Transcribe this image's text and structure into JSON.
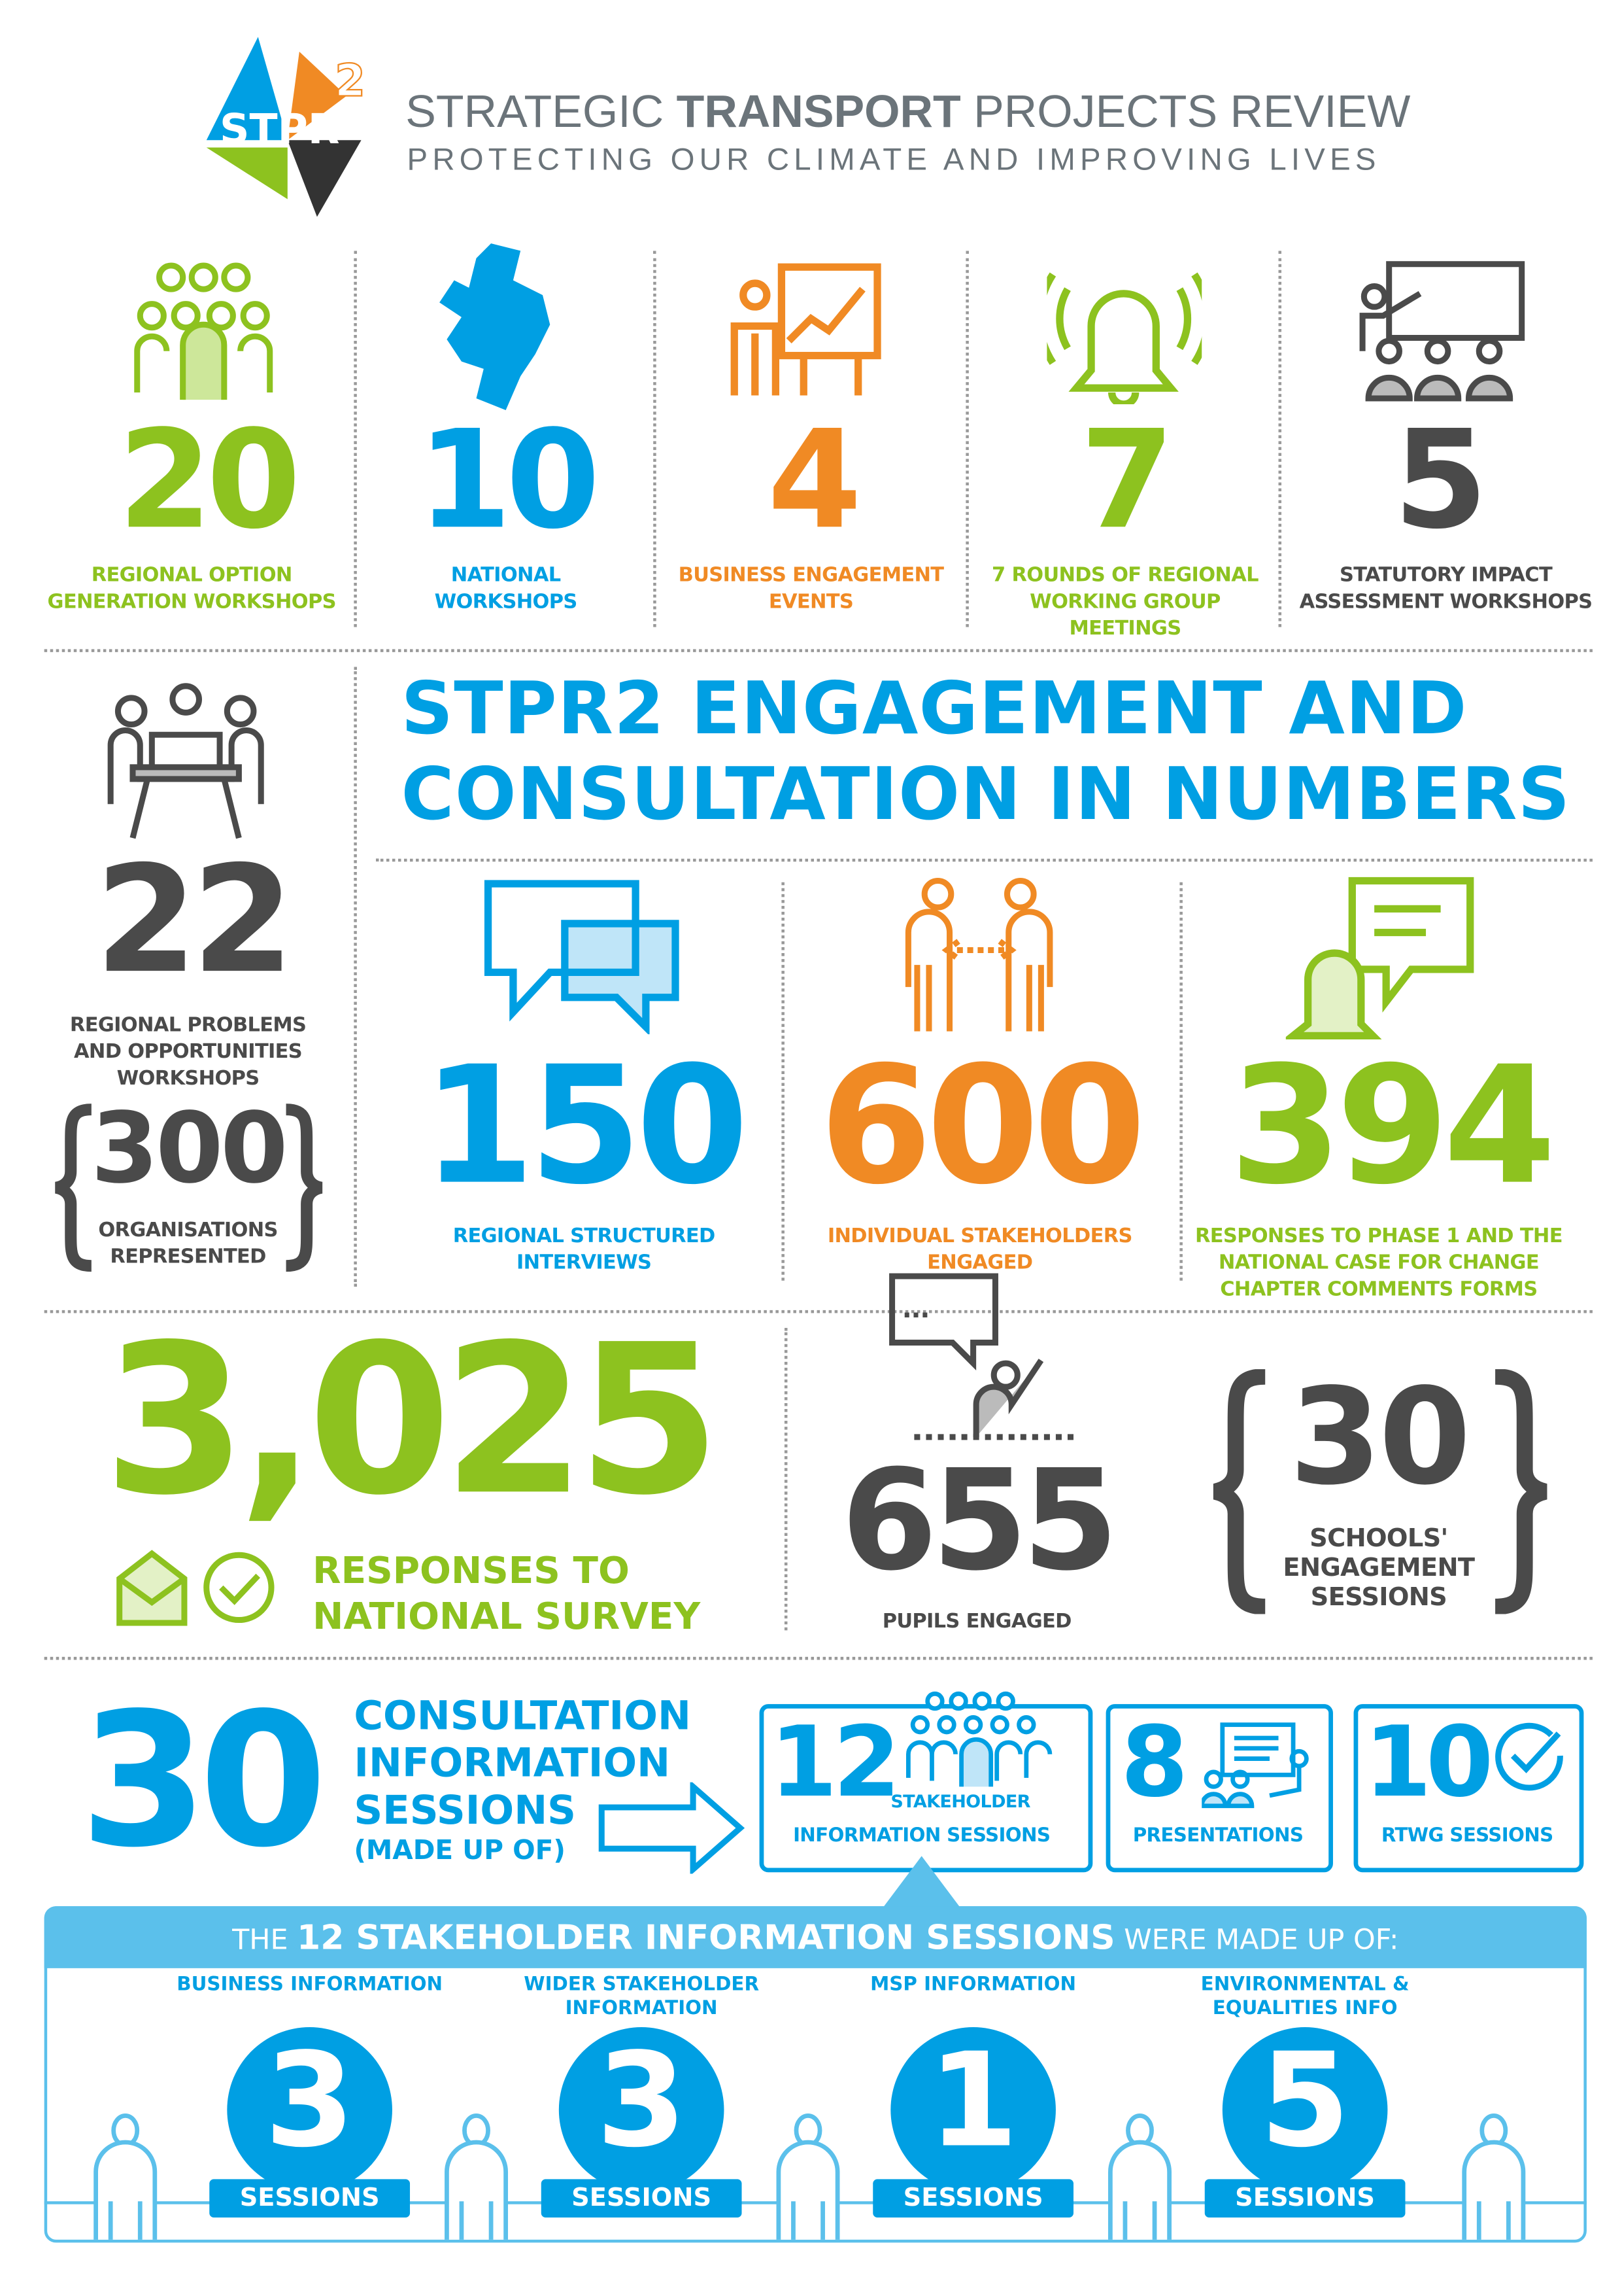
{
  "header": {
    "logo_text": "STPR",
    "logo_superscript": "2",
    "title_light_1": "STRATEGIC ",
    "title_bold": "TRANSPORT",
    "title_light_2": " PROJECTS REVIEW",
    "subtitle": "PROTECTING OUR CLIMATE AND IMPROVING LIVES"
  },
  "colors": {
    "green": "#8dc21f",
    "blue": "#009fe3",
    "orange": "#f08a24",
    "dark": "#4a4a4a",
    "light_blue": "#5bc0eb"
  },
  "row1": [
    {
      "value": "20",
      "label": "REGIONAL OPTION\nGENERATION WORKSHOPS",
      "icon": "group-people-icon"
    },
    {
      "value": "10",
      "label": "NATIONAL\nWORKSHOPS",
      "icon": "scotland-map-icon"
    },
    {
      "value": "4",
      "label": "BUSINESS ENGAGEMENT\nEVENTS",
      "icon": "presentation-chart-icon"
    },
    {
      "value": "7",
      "label": "7 ROUNDS OF REGIONAL\nWORKING GROUP\nMEETINGS",
      "icon": "bell-icon"
    },
    {
      "value": "5",
      "label": "STATUTORY IMPACT\nASSESSMENT WORKSHOPS",
      "icon": "teacher-audience-icon"
    }
  ],
  "headline": {
    "line1": "STPR2 ENGAGEMENT AND",
    "line2": "CONSULTATION IN NUMBERS"
  },
  "left": {
    "value": "22",
    "label": "REGIONAL PROBLEMS\nAND OPPORTUNITIES\nWORKSHOPS",
    "org_value": "300",
    "org_label": "ORGANISATIONS\nREPRESENTED"
  },
  "row2": [
    {
      "value": "150",
      "label": "REGIONAL STRUCTURED\nINTERVIEWS",
      "icon": "speech-bubbles-icon"
    },
    {
      "value": "600",
      "label": "INDIVIDUAL STAKEHOLDERS\nENGAGED",
      "icon": "two-people-exchange-icon"
    },
    {
      "value": "394",
      "label": "RESPONSES TO PHASE 1 AND THE\nNATIONAL CASE FOR CHANGE\nCHAPTER COMMENTS FORMS",
      "icon": "bell-chat-icon"
    }
  ],
  "survey": {
    "value": "3,025",
    "line1": "RESPONSES TO",
    "line2": "NATIONAL SURVEY"
  },
  "pupils": {
    "value": "655",
    "label": "PUPILS ENGAGED",
    "bubble": "..."
  },
  "schools": {
    "value": "30",
    "label": "SCHOOLS'\nENGAGEMENT\nSESSIONS"
  },
  "consultation": {
    "value": "30",
    "line1": "CONSULTATION",
    "line2": "INFORMATION",
    "line3": "SESSIONS",
    "line4": "(MADE UP OF)"
  },
  "breakdown": [
    {
      "value": "12",
      "label_top": "STAKEHOLDER",
      "label": "INFORMATION SESSIONS"
    },
    {
      "value": "8",
      "label": "PRESENTATIONS"
    },
    {
      "value": "10",
      "label": "RTWG SESSIONS"
    }
  ],
  "banner": {
    "pre": "THE ",
    "bold": "12 STAKEHOLDER INFORMATION SESSIONS",
    "post": " WERE MADE UP OF:"
  },
  "sessions": [
    {
      "value": "3",
      "arc": "BUSINESS INFORMATION",
      "unit": "SESSIONS"
    },
    {
      "value": "3",
      "arc": "WIDER STAKEHOLDER INFORMATION",
      "unit": "SESSIONS"
    },
    {
      "value": "1",
      "arc": "MSP INFORMATION",
      "unit": "SESSIONS"
    },
    {
      "value": "5",
      "arc": "ENVIRONMENTAL & EQUALITIES INFO",
      "unit": "SESSIONS"
    }
  ]
}
